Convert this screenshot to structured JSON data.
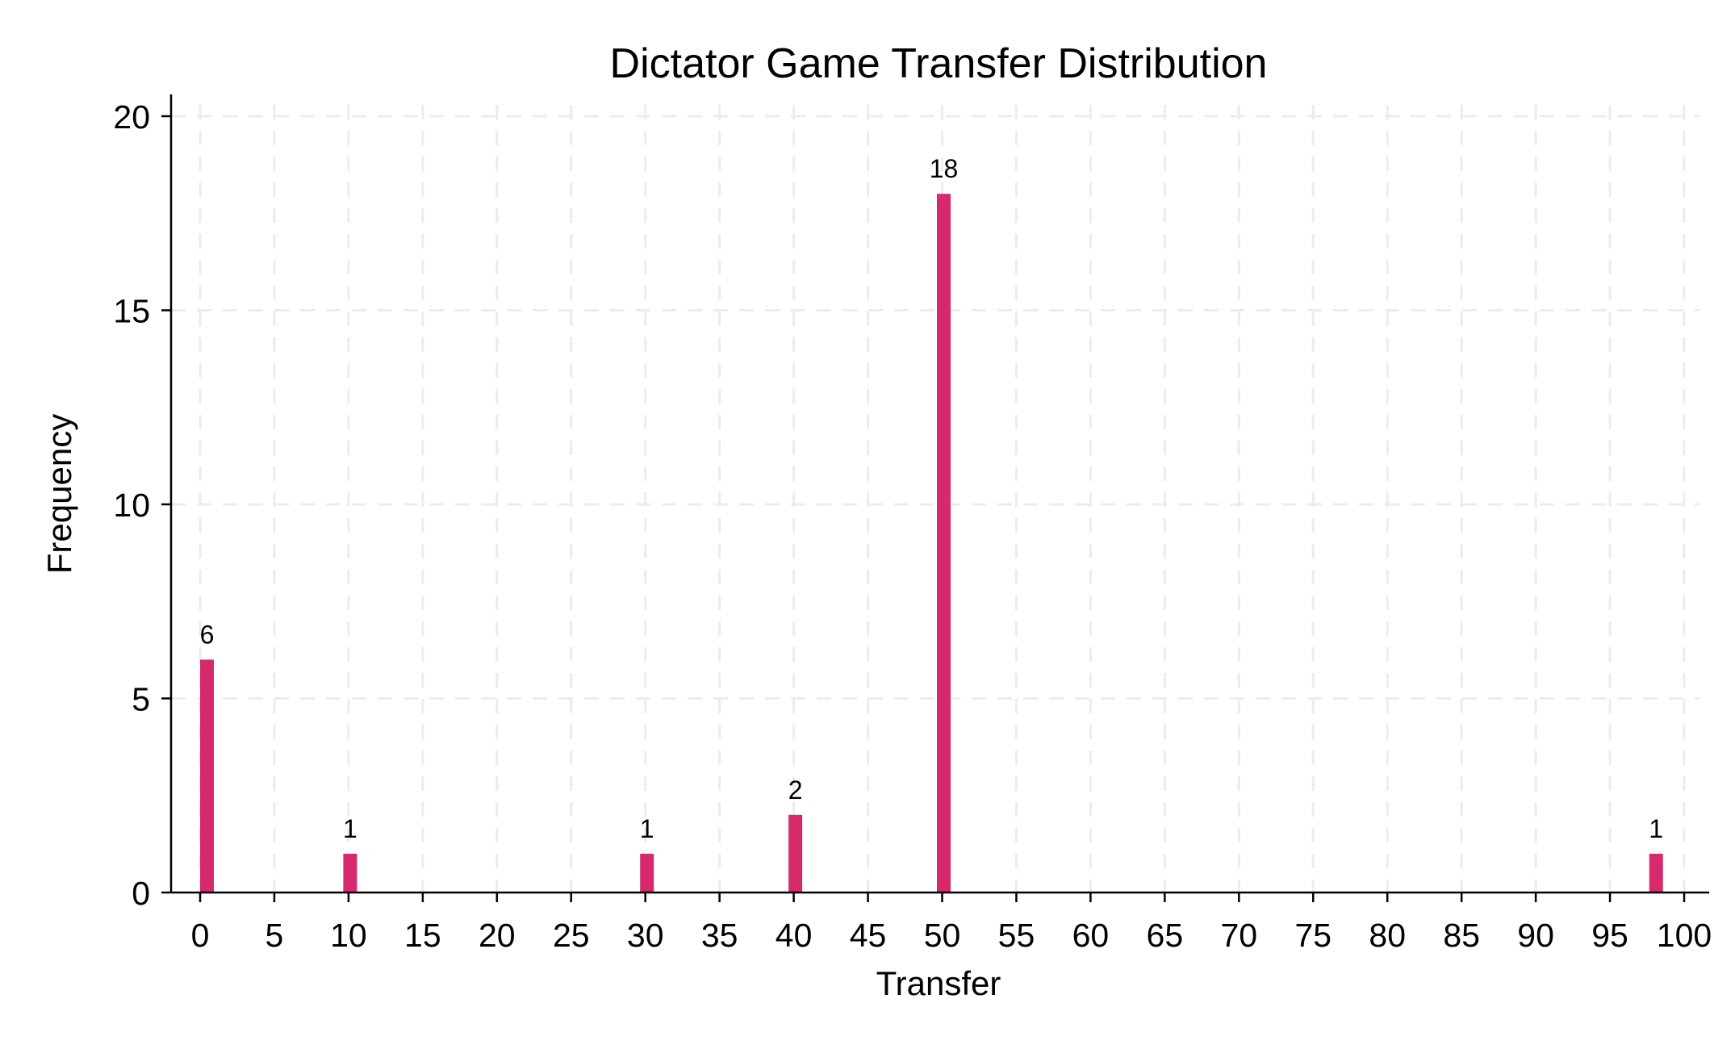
{
  "chart_data": {
    "type": "bar",
    "title": "Dictator Game Transfer Distribution",
    "xlabel": "Transfer",
    "ylabel": "Frequency",
    "x": [
      0,
      10,
      30,
      40,
      50,
      98
    ],
    "values": [
      6,
      1,
      1,
      2,
      18,
      1
    ],
    "data_labels": [
      "6",
      "1",
      "1",
      "2",
      "18",
      "1"
    ],
    "xlim": [
      0,
      100
    ],
    "ylim": [
      0,
      20
    ],
    "xticks": [
      0,
      5,
      10,
      15,
      20,
      25,
      30,
      35,
      40,
      45,
      50,
      55,
      60,
      65,
      70,
      75,
      80,
      85,
      90,
      95,
      100
    ],
    "xtick_labels": [
      "0",
      "5",
      "10",
      "15",
      "20",
      "25",
      "30",
      "35",
      "40",
      "45",
      "50",
      "55",
      "60",
      "65",
      "70",
      "75",
      "80",
      "85",
      "90",
      "95",
      "100"
    ],
    "yticks": [
      0,
      5,
      10,
      15,
      20
    ],
    "ytick_labels": [
      "0",
      "5",
      "10",
      "15",
      "20"
    ],
    "grid": true,
    "bar_color": "#d62a6c"
  }
}
